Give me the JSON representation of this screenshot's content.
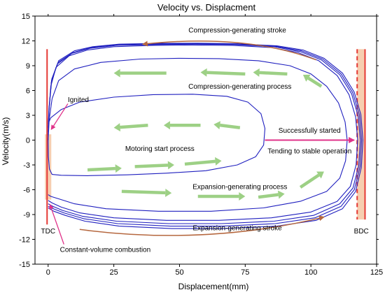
{
  "chart_data": {
    "type": "line",
    "title": "Velocity vs. Displacment",
    "xlabel": "Displacement(mm)",
    "ylabel": "Velocity(m/s)",
    "xlim": [
      -5,
      125
    ],
    "ylim": [
      -15,
      15
    ],
    "xticks": [
      0,
      25,
      50,
      75,
      100,
      125
    ],
    "yticks": [
      15,
      12,
      9,
      6,
      3,
      0,
      -3,
      -6,
      -9,
      -12,
      -15
    ],
    "grid": false,
    "series_color": "#1f1fbf",
    "series": [
      {
        "points": [
          [
            0,
            0
          ],
          [
            0.2,
            3
          ],
          [
            1,
            6.5
          ],
          [
            3,
            8.8
          ],
          [
            8,
            10.2
          ],
          [
            15,
            10.9
          ],
          [
            25,
            11.3
          ],
          [
            40,
            11.45
          ],
          [
            55,
            11.5
          ],
          [
            70,
            11.45
          ],
          [
            85,
            11.2
          ],
          [
            95,
            10.6
          ],
          [
            103,
            9.6
          ],
          [
            110,
            7.8
          ],
          [
            114.5,
            5.5
          ],
          [
            117,
            2.8
          ],
          [
            117.8,
            0
          ],
          [
            117.2,
            -3
          ],
          [
            115,
            -5.6
          ],
          [
            110,
            -7.4
          ],
          [
            100,
            -8.7
          ],
          [
            85,
            -9.4
          ],
          [
            65,
            -9.7
          ],
          [
            45,
            -9.7
          ],
          [
            25,
            -9.4
          ],
          [
            12,
            -8.8
          ],
          [
            5,
            -8.1
          ],
          [
            1.5,
            -7.6
          ],
          [
            0,
            -7.3
          ]
        ]
      },
      {
        "points": [
          [
            0,
            0.6
          ],
          [
            0.3,
            3.5
          ],
          [
            1.2,
            7
          ],
          [
            3.5,
            9.2
          ],
          [
            9,
            10.5
          ],
          [
            16,
            11.1
          ],
          [
            26,
            11.45
          ],
          [
            41,
            11.55
          ],
          [
            56,
            11.6
          ],
          [
            71,
            11.55
          ],
          [
            86,
            11.3
          ],
          [
            96,
            10.7
          ],
          [
            104,
            9.7
          ],
          [
            111,
            7.9
          ],
          [
            115.5,
            5.6
          ],
          [
            118,
            2.9
          ],
          [
            118.8,
            0
          ],
          [
            118.2,
            -3.1
          ],
          [
            116,
            -5.8
          ],
          [
            111,
            -7.7
          ],
          [
            101,
            -9.1
          ],
          [
            86,
            -9.8
          ],
          [
            66,
            -10.1
          ],
          [
            46,
            -10.1
          ],
          [
            26,
            -9.8
          ],
          [
            13,
            -9.2
          ],
          [
            5.5,
            -8.5
          ],
          [
            1.8,
            -8
          ],
          [
            0,
            -7.7
          ]
        ]
      },
      {
        "points": [
          [
            0,
            1
          ],
          [
            0.3,
            3.8
          ],
          [
            1.3,
            7.2
          ],
          [
            3.8,
            9.4
          ],
          [
            9.5,
            10.6
          ],
          [
            16.5,
            11.2
          ],
          [
            26.5,
            11.55
          ],
          [
            41.5,
            11.62
          ],
          [
            56.5,
            11.65
          ],
          [
            71.5,
            11.6
          ],
          [
            86.5,
            11.35
          ],
          [
            96.5,
            10.8
          ],
          [
            104.5,
            9.8
          ],
          [
            111.5,
            8
          ],
          [
            116,
            5.7
          ],
          [
            118.5,
            3
          ],
          [
            119.3,
            0
          ],
          [
            118.7,
            -3.2
          ],
          [
            116.5,
            -6
          ],
          [
            111.5,
            -8
          ],
          [
            101.5,
            -9.4
          ],
          [
            86.5,
            -10.1
          ],
          [
            66.5,
            -10.4
          ],
          [
            46.5,
            -10.4
          ],
          [
            26.5,
            -10.1
          ],
          [
            13.5,
            -9.5
          ],
          [
            6,
            -8.8
          ],
          [
            2,
            -8.3
          ],
          [
            0,
            -8
          ]
        ]
      },
      {
        "points": [
          [
            0,
            1.5
          ],
          [
            0.4,
            4
          ],
          [
            1.4,
            7.4
          ],
          [
            4,
            9.6
          ],
          [
            10,
            10.8
          ],
          [
            17,
            11.3
          ],
          [
            27,
            11.6
          ],
          [
            42,
            11.7
          ],
          [
            57,
            11.72
          ],
          [
            72,
            11.65
          ],
          [
            87,
            11.4
          ],
          [
            97,
            10.9
          ],
          [
            105,
            9.9
          ],
          [
            112,
            8.1
          ],
          [
            116.5,
            5.8
          ],
          [
            119,
            3.1
          ],
          [
            119.8,
            0
          ],
          [
            119.2,
            -3.3
          ],
          [
            117,
            -6.2
          ],
          [
            112,
            -8.3
          ],
          [
            102,
            -9.7
          ],
          [
            87,
            -10.4
          ],
          [
            67,
            -10.7
          ],
          [
            47,
            -10.7
          ],
          [
            27,
            -10.4
          ],
          [
            14,
            -9.8
          ],
          [
            6.5,
            -9.1
          ],
          [
            2.2,
            -8.6
          ],
          [
            0,
            -8.2
          ]
        ]
      },
      {
        "points": [
          [
            0,
            0
          ],
          [
            0.4,
            2.5
          ],
          [
            1.5,
            5
          ],
          [
            4,
            7.2
          ],
          [
            10,
            8.6
          ],
          [
            20,
            9.4
          ],
          [
            35,
            9.8
          ],
          [
            50,
            9.9
          ],
          [
            65,
            9.85
          ],
          [
            80,
            9.6
          ],
          [
            92,
            9
          ],
          [
            100,
            8
          ],
          [
            106,
            6.5
          ],
          [
            110.5,
            4.5
          ],
          [
            113,
            2.2
          ],
          [
            113.8,
            0
          ],
          [
            113.2,
            -2.5
          ],
          [
            111,
            -4.6
          ],
          [
            106,
            -6.2
          ],
          [
            96,
            -7.4
          ],
          [
            82,
            -8.2
          ],
          [
            62,
            -8.6
          ],
          [
            42,
            -8.6
          ],
          [
            22,
            -8.3
          ],
          [
            10,
            -7.7
          ],
          [
            4,
            -7.1
          ],
          [
            1,
            -6.8
          ],
          [
            0,
            -6.6
          ]
        ]
      },
      {
        "points": [
          [
            0,
            2
          ],
          [
            1,
            2.7
          ],
          [
            5,
            3.7
          ],
          [
            12,
            4.6
          ],
          [
            25,
            5.2
          ],
          [
            40,
            5.5
          ],
          [
            55,
            5.55
          ],
          [
            68,
            5.3
          ],
          [
            76,
            4.6
          ],
          [
            81,
            3.2
          ],
          [
            82.5,
            1.4
          ],
          [
            82,
            -0.6
          ],
          [
            79,
            -2
          ],
          [
            72,
            -3
          ],
          [
            60,
            -3.7
          ],
          [
            45,
            -4
          ],
          [
            30,
            -4.2
          ],
          [
            15,
            -4.3
          ],
          [
            5,
            -4.25
          ],
          [
            1.5,
            -4.15
          ],
          [
            0.5,
            -3.5
          ],
          [
            0.1,
            -2
          ],
          [
            0,
            0
          ]
        ]
      }
    ],
    "annotations": {
      "arrow_texts": [
        "Compression-generating stroke",
        "Compression-generating process",
        "Motoring start process",
        "Expansion-generating process",
        "Expansion-generating stroke"
      ],
      "ignited": "Ignited",
      "successfully_started": "Successfully started",
      "tending_stable": "Tending to stable operation",
      "constant_volume": "Constant-volume combustion",
      "tdc": "TDC",
      "bdc": "BDC"
    },
    "colors": {
      "red": "#e53935",
      "brown_arrow": "#b5673e",
      "green_arrow": "#8cc870",
      "band": "#f5c9a7",
      "magenta": "#e0338a"
    }
  }
}
